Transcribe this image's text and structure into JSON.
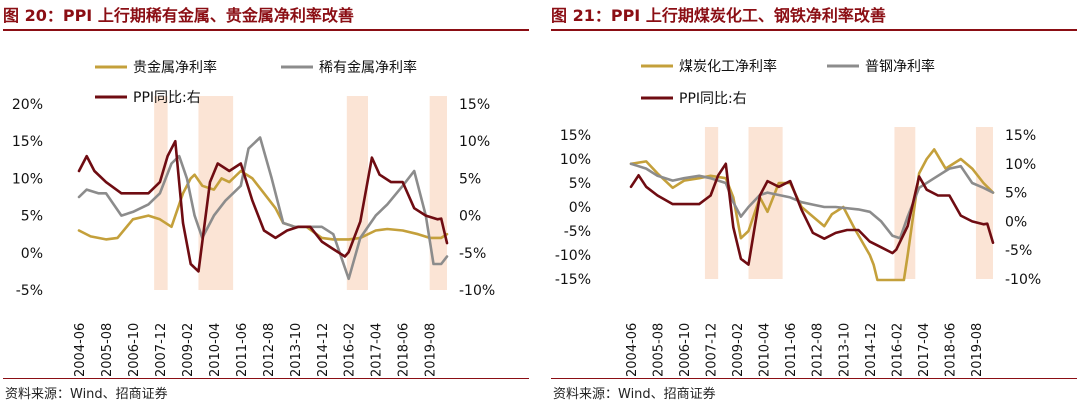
{
  "colors": {
    "title": "#8b0e14",
    "shade": "#fbe4d5",
    "precious": "#c4a03b",
    "rare": "#8c8c8c",
    "ppi": "#6f0c12",
    "steel": "#8c8c8c",
    "coal": "#c4a03b"
  },
  "source": "资料来源：Wind、招商证券",
  "x_tick_labels": [
    "2004-06",
    "2005-08",
    "2006-10",
    "2007-12",
    "2009-02",
    "2010-04",
    "2011-06",
    "2012-08",
    "2013-10",
    "2014-12",
    "2016-02",
    "2017-04",
    "2018-06",
    "2019-08"
  ],
  "chart_data": [
    {
      "type": "line",
      "title": "图 20：PPI 上行期稀有金属、贵金属净利率改善",
      "x_range": [
        "2004-06",
        "2020-05"
      ],
      "shaded_periods": [
        [
          "2007-09",
          "2008-04"
        ],
        [
          "2009-08",
          "2011-02"
        ],
        [
          "2016-01",
          "2016-12"
        ],
        [
          "2019-08",
          "2020-05"
        ]
      ],
      "left_axis": {
        "ticks": [
          "20%",
          "15%",
          "10%",
          "5%",
          "0%",
          "-5%"
        ],
        "ylim": [
          -5,
          20
        ]
      },
      "right_axis": {
        "ticks": [
          "15%",
          "10%",
          "5%",
          "0%",
          "-5%",
          "-10%"
        ],
        "ylim": [
          -10,
          15
        ]
      },
      "legend": [
        "贵金属净利率",
        "稀有金属净利率",
        "PPI同比:右"
      ],
      "series": [
        {
          "name": "贵金属净利率",
          "axis": "left",
          "color": "#c4a03b",
          "points": [
            [
              "2004-06",
              3
            ],
            [
              "2004-12",
              2.2
            ],
            [
              "2005-08",
              1.8
            ],
            [
              "2006-02",
              2
            ],
            [
              "2006-10",
              4.5
            ],
            [
              "2007-06",
              5
            ],
            [
              "2007-12",
              4.5
            ],
            [
              "2008-06",
              3.5
            ],
            [
              "2008-12",
              8
            ],
            [
              "2009-04",
              10
            ],
            [
              "2009-06",
              10.5
            ],
            [
              "2009-10",
              9
            ],
            [
              "2010-04",
              8.5
            ],
            [
              "2010-08",
              10
            ],
            [
              "2010-12",
              9.5
            ],
            [
              "2011-06",
              11
            ],
            [
              "2011-12",
              10
            ],
            [
              "2012-06",
              8
            ],
            [
              "2012-12",
              6
            ],
            [
              "2013-04",
              4
            ],
            [
              "2013-10",
              3.5
            ],
            [
              "2014-04",
              3.5
            ],
            [
              "2014-12",
              2
            ],
            [
              "2015-06",
              1.8
            ],
            [
              "2016-02",
              1.8
            ],
            [
              "2016-08",
              2
            ],
            [
              "2017-04",
              3
            ],
            [
              "2017-10",
              3.2
            ],
            [
              "2018-06",
              3
            ],
            [
              "2019-02",
              2.5
            ],
            [
              "2019-08",
              2
            ],
            [
              "2020-02",
              2
            ],
            [
              "2020-05",
              2.5
            ]
          ]
        },
        {
          "name": "稀有金属净利率",
          "axis": "left",
          "color": "#8c8c8c",
          "points": [
            [
              "2004-06",
              7.5
            ],
            [
              "2004-10",
              8.5
            ],
            [
              "2005-04",
              8
            ],
            [
              "2005-08",
              8
            ],
            [
              "2006-04",
              5
            ],
            [
              "2006-10",
              5.5
            ],
            [
              "2007-06",
              6.5
            ],
            [
              "2007-12",
              8
            ],
            [
              "2008-06",
              12
            ],
            [
              "2008-10",
              13
            ],
            [
              "2009-02",
              10
            ],
            [
              "2009-06",
              5
            ],
            [
              "2009-10",
              2
            ],
            [
              "2010-04",
              5
            ],
            [
              "2010-10",
              7
            ],
            [
              "2011-06",
              9
            ],
            [
              "2011-10",
              14
            ],
            [
              "2012-04",
              15.5
            ],
            [
              "2012-10",
              10
            ],
            [
              "2013-04",
              4
            ],
            [
              "2013-10",
              3.5
            ],
            [
              "2014-06",
              3.5
            ],
            [
              "2014-12",
              3.5
            ],
            [
              "2015-06",
              2.5
            ],
            [
              "2016-02",
              -3.5
            ],
            [
              "2016-08",
              2
            ],
            [
              "2017-04",
              5
            ],
            [
              "2017-10",
              6.5
            ],
            [
              "2018-06",
              9
            ],
            [
              "2018-12",
              11
            ],
            [
              "2019-06",
              5
            ],
            [
              "2019-10",
              -1.5
            ],
            [
              "2020-02",
              -1.5
            ],
            [
              "2020-05",
              -0.5
            ]
          ]
        },
        {
          "name": "PPI同比:右",
          "axis": "right",
          "color": "#6f0c12",
          "points": [
            [
              "2004-06",
              6
            ],
            [
              "2004-10",
              8
            ],
            [
              "2005-02",
              6
            ],
            [
              "2005-08",
              4.5
            ],
            [
              "2006-04",
              3
            ],
            [
              "2006-10",
              3
            ],
            [
              "2007-06",
              3
            ],
            [
              "2007-12",
              4.5
            ],
            [
              "2008-04",
              8
            ],
            [
              "2008-08",
              10
            ],
            [
              "2008-12",
              -1
            ],
            [
              "2009-04",
              -6.5
            ],
            [
              "2009-08",
              -7.5
            ],
            [
              "2010-02",
              4.5
            ],
            [
              "2010-06",
              7
            ],
            [
              "2010-12",
              6
            ],
            [
              "2011-06",
              7
            ],
            [
              "2011-12",
              2
            ],
            [
              "2012-06",
              -2
            ],
            [
              "2012-12",
              -3
            ],
            [
              "2013-06",
              -2
            ],
            [
              "2013-12",
              -1.5
            ],
            [
              "2014-06",
              -1.5
            ],
            [
              "2014-12",
              -3.5
            ],
            [
              "2015-06",
              -4.5
            ],
            [
              "2015-12",
              -5.5
            ],
            [
              "2016-02",
              -4.9
            ],
            [
              "2016-08",
              -0.8
            ],
            [
              "2017-02",
              7.8
            ],
            [
              "2017-06",
              5.5
            ],
            [
              "2017-12",
              4.5
            ],
            [
              "2018-06",
              4.5
            ],
            [
              "2018-12",
              1
            ],
            [
              "2019-06",
              0
            ],
            [
              "2019-12",
              -0.5
            ],
            [
              "2020-02",
              -0.4
            ],
            [
              "2020-05",
              -3.7
            ]
          ]
        }
      ]
    },
    {
      "type": "line",
      "title": "图 21：PPI 上行期煤炭化工、钢铁净利率改善",
      "x_range": [
        "2004-06",
        "2020-05"
      ],
      "shaded_periods": [
        [
          "2007-09",
          "2008-04"
        ],
        [
          "2009-08",
          "2011-02"
        ],
        [
          "2016-01",
          "2016-12"
        ],
        [
          "2019-08",
          "2020-05"
        ]
      ],
      "left_axis": {
        "ticks": [
          "15%",
          "10%",
          "5%",
          "0%",
          "-5%",
          "-10%",
          "-15%"
        ],
        "ylim": [
          -15,
          15
        ]
      },
      "right_axis": {
        "ticks": [
          "15%",
          "10%",
          "5%",
          "0%",
          "-5%",
          "-10%"
        ],
        "ylim": [
          -10,
          15
        ]
      },
      "legend": [
        "煤炭化工净利率",
        "普钢净利率",
        "PPI同比:右"
      ],
      "series": [
        {
          "name": "煤炭化工净利率",
          "axis": "left",
          "color": "#c4a03b",
          "points": [
            [
              "2004-06",
              9
            ],
            [
              "2005-02",
              9.5
            ],
            [
              "2005-08",
              7
            ],
            [
              "2006-04",
              4
            ],
            [
              "2006-10",
              5.5
            ],
            [
              "2007-06",
              6
            ],
            [
              "2007-12",
              6.5
            ],
            [
              "2008-08",
              6
            ],
            [
              "2008-12",
              2
            ],
            [
              "2009-04",
              -6.5
            ],
            [
              "2009-08",
              -5
            ],
            [
              "2010-02",
              2
            ],
            [
              "2010-06",
              -1
            ],
            [
              "2010-12",
              5
            ],
            [
              "2011-06",
              5
            ],
            [
              "2011-12",
              0
            ],
            [
              "2012-06",
              -2
            ],
            [
              "2012-12",
              -4
            ],
            [
              "2013-04",
              -1.5
            ],
            [
              "2013-10",
              0
            ],
            [
              "2014-04",
              -4.5
            ],
            [
              "2014-12",
              -10
            ],
            [
              "2015-02",
              -12
            ],
            [
              "2015-04",
              -15.2
            ],
            [
              "2016-06",
              -15.2
            ],
            [
              "2016-08",
              -10
            ],
            [
              "2017-02",
              7
            ],
            [
              "2017-06",
              10
            ],
            [
              "2017-10",
              12
            ],
            [
              "2018-04",
              8
            ],
            [
              "2018-12",
              10
            ],
            [
              "2019-06",
              8
            ],
            [
              "2019-12",
              5
            ],
            [
              "2020-05",
              3
            ]
          ]
        },
        {
          "name": "普钢净利率",
          "axis": "left",
          "color": "#8c8c8c",
          "points": [
            [
              "2004-06",
              9
            ],
            [
              "2005-02",
              8
            ],
            [
              "2005-08",
              6.5
            ],
            [
              "2006-04",
              5.5
            ],
            [
              "2006-10",
              6
            ],
            [
              "2007-06",
              6.5
            ],
            [
              "2007-12",
              6
            ],
            [
              "2008-08",
              5
            ],
            [
              "2008-12",
              1
            ],
            [
              "2009-04",
              -2
            ],
            [
              "2009-08",
              0
            ],
            [
              "2010-02",
              2.5
            ],
            [
              "2010-06",
              3
            ],
            [
              "2010-12",
              2.5
            ],
            [
              "2011-06",
              2
            ],
            [
              "2011-12",
              1
            ],
            [
              "2012-06",
              0.5
            ],
            [
              "2012-12",
              0
            ],
            [
              "2013-06",
              0
            ],
            [
              "2014-06",
              -0.5
            ],
            [
              "2014-12",
              -1
            ],
            [
              "2015-06",
              -3
            ],
            [
              "2015-12",
              -6
            ],
            [
              "2016-04",
              -6.5
            ],
            [
              "2016-08",
              -2
            ],
            [
              "2017-02",
              4
            ],
            [
              "2017-10",
              6
            ],
            [
              "2018-06",
              8
            ],
            [
              "2018-12",
              8.5
            ],
            [
              "2019-06",
              5
            ],
            [
              "2019-12",
              4
            ],
            [
              "2020-05",
              3
            ]
          ]
        },
        {
          "name": "PPI同比:右",
          "axis": "right",
          "color": "#6f0c12",
          "points": [
            [
              "2004-06",
              6
            ],
            [
              "2004-10",
              8
            ],
            [
              "2005-02",
              6
            ],
            [
              "2005-08",
              4.5
            ],
            [
              "2006-04",
              3
            ],
            [
              "2006-10",
              3
            ],
            [
              "2007-06",
              3
            ],
            [
              "2007-12",
              4.5
            ],
            [
              "2008-04",
              8
            ],
            [
              "2008-08",
              10
            ],
            [
              "2008-12",
              -1
            ],
            [
              "2009-04",
              -6.5
            ],
            [
              "2009-08",
              -7.5
            ],
            [
              "2010-02",
              4.5
            ],
            [
              "2010-06",
              7
            ],
            [
              "2010-12",
              6
            ],
            [
              "2011-06",
              7
            ],
            [
              "2011-12",
              2
            ],
            [
              "2012-06",
              -2
            ],
            [
              "2012-12",
              -3
            ],
            [
              "2013-06",
              -2
            ],
            [
              "2013-12",
              -1.5
            ],
            [
              "2014-06",
              -1.5
            ],
            [
              "2014-12",
              -3.5
            ],
            [
              "2015-06",
              -4.5
            ],
            [
              "2015-12",
              -5.5
            ],
            [
              "2016-02",
              -4.9
            ],
            [
              "2016-08",
              -0.8
            ],
            [
              "2017-02",
              7.8
            ],
            [
              "2017-06",
              5.5
            ],
            [
              "2017-12",
              4.5
            ],
            [
              "2018-06",
              4.5
            ],
            [
              "2018-12",
              1
            ],
            [
              "2019-06",
              0
            ],
            [
              "2019-12",
              -0.5
            ],
            [
              "2020-02",
              -0.4
            ],
            [
              "2020-05",
              -3.7
            ]
          ]
        }
      ]
    }
  ]
}
